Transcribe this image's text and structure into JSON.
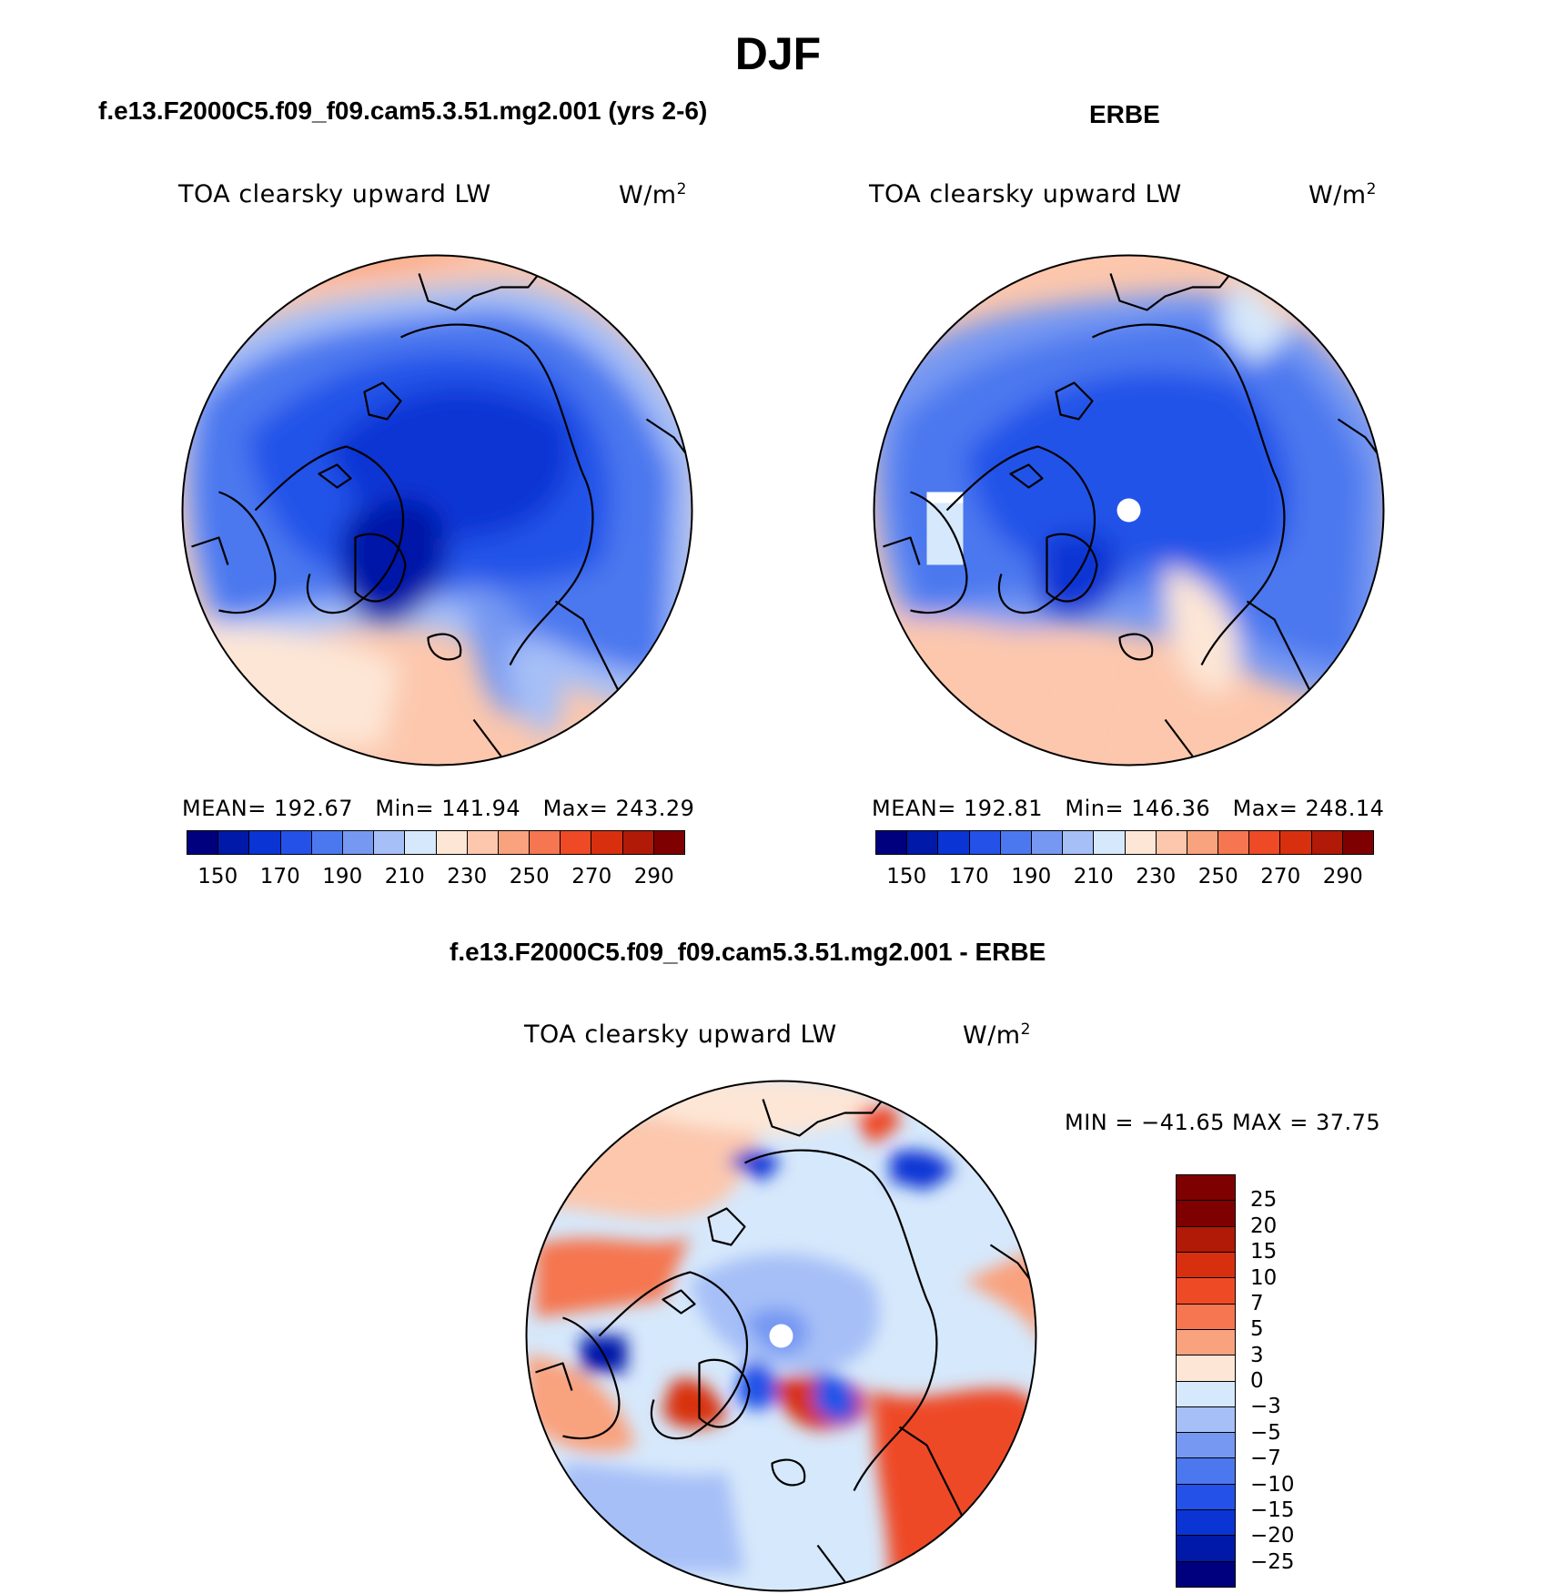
{
  "figure": {
    "title": "DJF"
  },
  "panels": {
    "model": {
      "title": "f.e13.F2000C5.f09_f09.cam5.3.51.mg2.001 (yrs 2-6)",
      "variable": "TOA clearsky upward LW",
      "units": "W/m",
      "units_exp": "2",
      "mean_label": "MEAN=",
      "mean": "192.67",
      "min_label": "Min=",
      "min": "141.94",
      "max_label": "Max=",
      "max": "243.29"
    },
    "obs": {
      "title": "ERBE",
      "variable": "TOA clearsky upward LW",
      "units": "W/m",
      "units_exp": "2",
      "mean_label": "MEAN=",
      "mean": "192.81",
      "min_label": "Min=",
      "min": "146.36",
      "max_label": "Max=",
      "max": "248.14"
    },
    "diff": {
      "title": "f.e13.F2000C5.f09_f09.cam5.3.51.mg2.001 - ERBE",
      "variable": "TOA clearsky upward LW",
      "units": "W/m",
      "units_exp": "2",
      "minmax_text": "MIN = −41.65 MAX =  37.75"
    }
  },
  "colorbars": {
    "absolute": {
      "colors": [
        "#00007f",
        "#0019a8",
        "#0a35d4",
        "#2452e8",
        "#4c78ef",
        "#7698f2",
        "#a6bff7",
        "#d6e8fb",
        "#fde6d6",
        "#fcc7ad",
        "#f9a27e",
        "#f57650",
        "#ee4a26",
        "#d8300f",
        "#b01a07",
        "#7f0000"
      ],
      "ticks": [
        "150",
        "170",
        "190",
        "210",
        "230",
        "250",
        "270",
        "290"
      ]
    },
    "difference": {
      "colors": [
        "#7f0000",
        "#b01a07",
        "#d8300f",
        "#ee4a26",
        "#f57650",
        "#f9a27e",
        "#fde6d6",
        "#d6e8fb",
        "#a6bff7",
        "#7698f2",
        "#4c78ef",
        "#2452e8",
        "#0a35d4",
        "#0019a8",
        "#00007f"
      ],
      "ticks": [
        "25",
        "20",
        "15",
        "10",
        "7",
        "5",
        "3",
        "0",
        "−3",
        "−5",
        "−7",
        "−10",
        "−15",
        "−20",
        "−25"
      ]
    }
  }
}
